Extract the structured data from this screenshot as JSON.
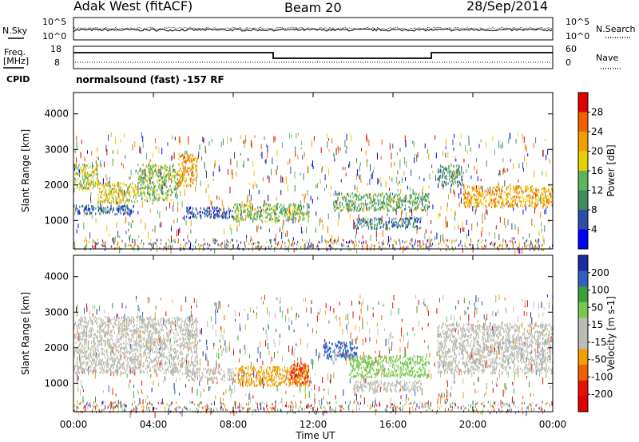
{
  "header": {
    "radar": "Adak West (fitACF)",
    "beam": "Beam 20",
    "date": "28/Sep/2014"
  },
  "top_panel": {
    "left_label": "N.Sky",
    "right_label": "N.Search",
    "left_ticks": [
      "10^5",
      "10^0"
    ],
    "right_ticks": [
      "10^5",
      "10^0"
    ]
  },
  "freq_panel": {
    "left_label_line1": "Freq.",
    "left_label_line2": "[MHz]",
    "right_label": "Nave",
    "left_ticks": [
      "18",
      "8"
    ],
    "right_ticks": [
      "60",
      "0"
    ],
    "cpid_label": "CPID",
    "cpid_text": "normalsound (fast) -157 RF"
  },
  "colors": {
    "power_scale": [
      "#0000ff",
      "#2c4ea8",
      "#3c8c5c",
      "#5cb45c",
      "#e8d000",
      "#f0a000",
      "#f06000",
      "#e00000"
    ],
    "velocity_scale": [
      "#1c2ca0",
      "#3060c0",
      "#38a038",
      "#78c850",
      "#bcbcb4",
      "#bcbcb4",
      "#f0a000",
      "#f06000",
      "#e81000",
      "#e00000"
    ],
    "ground_scatter": "#bcbcb4"
  },
  "chart_data": [
    {
      "type": "heatmap",
      "title": "Power",
      "xlabel": "Time UT",
      "ylabel": "Slant Range [km]",
      "x_ticks": [
        "00:00",
        "04:00",
        "08:00",
        "12:00",
        "16:00",
        "20:00",
        "00:00"
      ],
      "xlim_hours": [
        0,
        24
      ],
      "y_ticks": [
        "1000",
        "2000",
        "3000",
        "4000"
      ],
      "ylim": [
        200,
        4600
      ],
      "colorbar": {
        "label": "Power [dB]",
        "ticks": [
          "28",
          "24",
          "20",
          "16",
          "12",
          "8",
          "4"
        ],
        "range": [
          0,
          32
        ]
      },
      "regions": [
        {
          "t": [
            0,
            1.2
          ],
          "r": [
            1900,
            2600
          ],
          "value": 16
        },
        {
          "t": [
            1.2,
            3.2
          ],
          "r": [
            1500,
            2100
          ],
          "value": 18
        },
        {
          "t": [
            3.2,
            5.2
          ],
          "r": [
            1600,
            2600
          ],
          "value": 14
        },
        {
          "t": [
            5.2,
            6.2
          ],
          "r": [
            2000,
            2900
          ],
          "value": 22
        },
        {
          "t": [
            0,
            3.0
          ],
          "r": [
            1200,
            1450
          ],
          "value": 8
        },
        {
          "t": [
            5.6,
            8.0
          ],
          "r": [
            1100,
            1400
          ],
          "value": 6
        },
        {
          "t": [
            8.0,
            11.8
          ],
          "r": [
            1000,
            1500
          ],
          "value": 14
        },
        {
          "t": [
            13.0,
            17.8
          ],
          "r": [
            1300,
            1800
          ],
          "value": 12
        },
        {
          "t": [
            14.0,
            17.4
          ],
          "r": [
            800,
            1100
          ],
          "value": 8
        },
        {
          "t": [
            18.2,
            19.5
          ],
          "r": [
            2000,
            2600
          ],
          "value": 10
        },
        {
          "t": [
            19.5,
            24.0
          ],
          "r": [
            1400,
            2000
          ],
          "value": 22
        }
      ]
    },
    {
      "type": "heatmap",
      "title": "Velocity",
      "xlabel": "Time UT",
      "ylabel": "Slant Range [km]",
      "x_ticks": [
        "00:00",
        "04:00",
        "08:00",
        "12:00",
        "16:00",
        "20:00",
        "00:00"
      ],
      "xlim_hours": [
        0,
        24
      ],
      "y_ticks": [
        "1000",
        "2000",
        "3000",
        "4000"
      ],
      "ylim": [
        200,
        4600
      ],
      "colorbar": {
        "label": "Velocity [m s-1]",
        "ticks": [
          "200",
          "100",
          "50",
          "15",
          "-15",
          "-50",
          "-100",
          "-200"
        ],
        "range": [
          -250,
          250
        ]
      },
      "regions": [
        {
          "t": [
            0,
            6.2
          ],
          "r": [
            1300,
            2900
          ],
          "value": 0
        },
        {
          "t": [
            5.6,
            8.0
          ],
          "r": [
            1100,
            1450
          ],
          "value": -30
        },
        {
          "t": [
            8.0,
            11.8
          ],
          "r": [
            950,
            1500
          ],
          "value": -60
        },
        {
          "t": [
            10.8,
            11.8
          ],
          "r": [
            1000,
            1600
          ],
          "value": -150
        },
        {
          "t": [
            12.5,
            14.2
          ],
          "r": [
            1700,
            2200
          ],
          "value": 160
        },
        {
          "t": [
            13.8,
            17.8
          ],
          "r": [
            1200,
            1800
          ],
          "value": 60
        },
        {
          "t": [
            14.0,
            17.4
          ],
          "r": [
            800,
            1100
          ],
          "value": 0
        },
        {
          "t": [
            18.2,
            24.0
          ],
          "r": [
            1300,
            2700
          ],
          "value": 0
        }
      ]
    }
  ]
}
